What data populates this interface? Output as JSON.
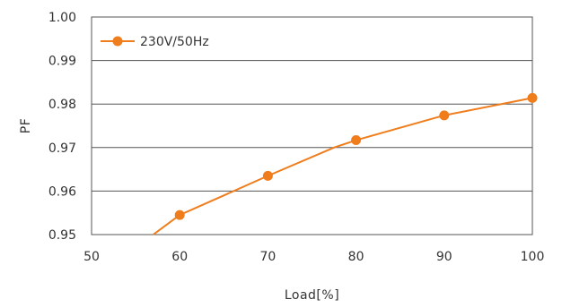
{
  "chart_data": {
    "type": "line",
    "xlabel": "Load[%]",
    "ylabel": "PF",
    "xlim": [
      50,
      100
    ],
    "ylim": [
      0.95,
      1.0
    ],
    "xticks": [
      50,
      60,
      70,
      80,
      90,
      100
    ],
    "yticks": [
      0.95,
      0.96,
      0.97,
      0.98,
      0.99,
      1.0
    ],
    "ytick_labels": [
      "0.95",
      "0.96",
      "0.97",
      "0.98",
      "0.99",
      "1.00"
    ],
    "grid": "horizontal",
    "legend_position": "top-left",
    "series": [
      {
        "name": "230V/50Hz",
        "color": "#f07d1c",
        "line": {
          "x": [
            57,
            60,
            70,
            77.5,
            80,
            90,
            100
          ],
          "y": [
            0.95,
            0.9545,
            0.9635,
            0.97,
            0.9717,
            0.9774,
            0.9814
          ]
        },
        "markers": {
          "x": [
            60,
            70,
            80,
            90,
            100
          ],
          "y": [
            0.9545,
            0.9635,
            0.9717,
            0.9774,
            0.9814
          ]
        }
      }
    ]
  }
}
